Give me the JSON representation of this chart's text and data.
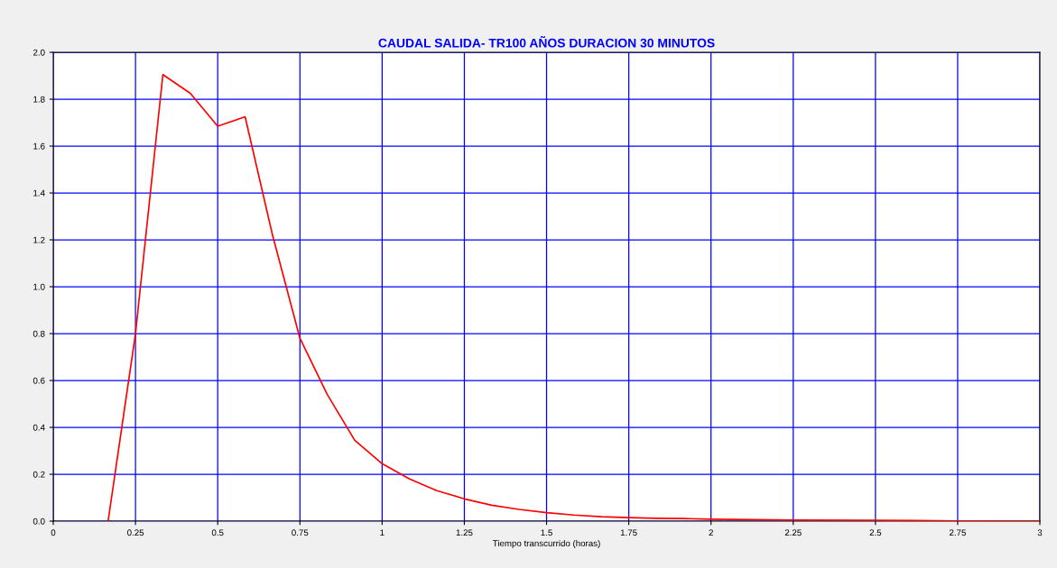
{
  "chart_data": {
    "type": "line",
    "title": "CAUDAL SALIDA- TR100 AÑOS DURACION 30 MINUTOS",
    "xlabel": "Tiempo transcurrido (horas)",
    "x": [
      0.1667,
      0.25,
      0.3333,
      0.4167,
      0.5,
      0.5833,
      0.6667,
      0.75,
      0.8333,
      0.9167,
      1.0,
      1.0833,
      1.1667,
      1.25,
      1.3333,
      1.4167,
      1.5,
      1.5833,
      1.6667,
      1.75,
      1.8333,
      1.9167,
      2.0,
      2.25,
      2.5,
      2.75,
      3.0
    ],
    "series": [
      {
        "color": "#ff0000",
        "values": [
          0,
          0.8,
          1.905,
          1.825,
          1.685,
          1.725,
          1.22,
          0.78,
          0.54,
          0.345,
          0.245,
          0.18,
          0.13,
          0.095,
          0.068,
          0.05,
          0.036,
          0.026,
          0.019,
          0.015,
          0.012,
          0.011,
          0.008,
          0.005,
          0.004,
          0.001,
          0
        ]
      }
    ],
    "xlim": [
      0,
      3
    ],
    "xticks": [
      0,
      0.25,
      0.5,
      0.75,
      1,
      1.25,
      1.5,
      1.75,
      2,
      2.25,
      2.5,
      2.75,
      3
    ],
    "ylim": [
      0,
      2.0
    ],
    "yticks": [
      {
        "value": 0,
        "label": "0.0"
      },
      {
        "value": 0.2,
        "label": "0.2"
      },
      {
        "value": 0.4,
        "label": "0.4"
      },
      {
        "value": 0.6,
        "label": "0.6"
      },
      {
        "value": 0.8,
        "label": "0.8"
      },
      {
        "value": 1.0,
        "label": "1.0"
      },
      {
        "value": 1.2,
        "label": "1.2"
      },
      {
        "value": 1.4,
        "label": "1.4"
      },
      {
        "value": 1.6,
        "label": "1.6"
      },
      {
        "value": 1.8,
        "label": "1.8"
      },
      {
        "value": 2.0,
        "label": "2.0"
      }
    ],
    "grid": true,
    "marker": "none",
    "line_style": "solid"
  }
}
